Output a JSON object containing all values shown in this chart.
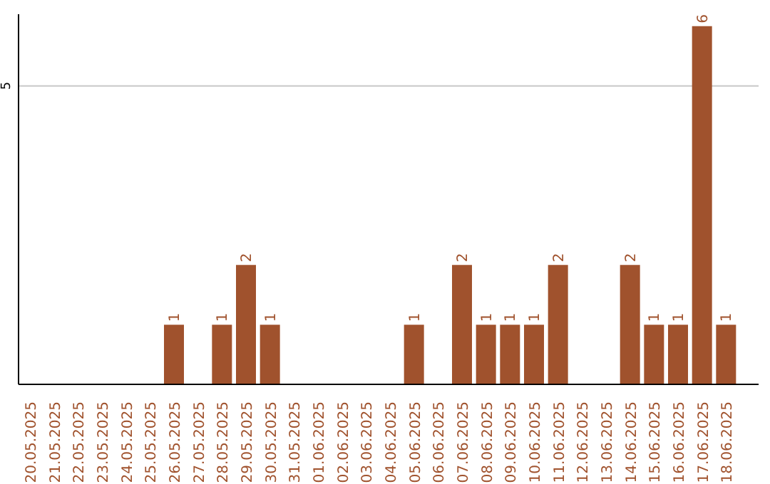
{
  "chart_data": {
    "type": "bar",
    "categories": [
      "20.05.2025",
      "21.05.2025",
      "22.05.2025",
      "23.05.2025",
      "24.05.2025",
      "25.05.2025",
      "26.05.2025",
      "27.05.2025",
      "28.05.2025",
      "29.05.2025",
      "30.05.2025",
      "31.05.2025",
      "01.06.2025",
      "02.06.2025",
      "03.06.2025",
      "04.06.2025",
      "05.06.2025",
      "06.06.2025",
      "07.06.2025",
      "08.06.2025",
      "09.06.2025",
      "10.06.2025",
      "11.06.2025",
      "12.06.2025",
      "13.06.2025",
      "14.06.2025",
      "15.06.2025",
      "16.06.2025",
      "17.06.2025",
      "18.06.2025"
    ],
    "values": [
      0,
      0,
      0,
      0,
      0,
      0,
      1,
      0,
      1,
      2,
      1,
      0,
      0,
      0,
      0,
      0,
      1,
      0,
      2,
      1,
      1,
      1,
      2,
      0,
      0,
      2,
      1,
      1,
      6,
      1
    ],
    "value_labels": [
      null,
      null,
      null,
      null,
      null,
      null,
      "1",
      null,
      "1",
      "2",
      "1",
      null,
      null,
      null,
      null,
      null,
      "1",
      null,
      "2",
      "1",
      "1",
      "1",
      "2",
      null,
      null,
      "2",
      "1",
      "1",
      "6",
      "1"
    ],
    "color": "#a0522d",
    "ylim": [
      0,
      6.2
    ],
    "yticks": [
      5
    ],
    "grid": "y"
  }
}
